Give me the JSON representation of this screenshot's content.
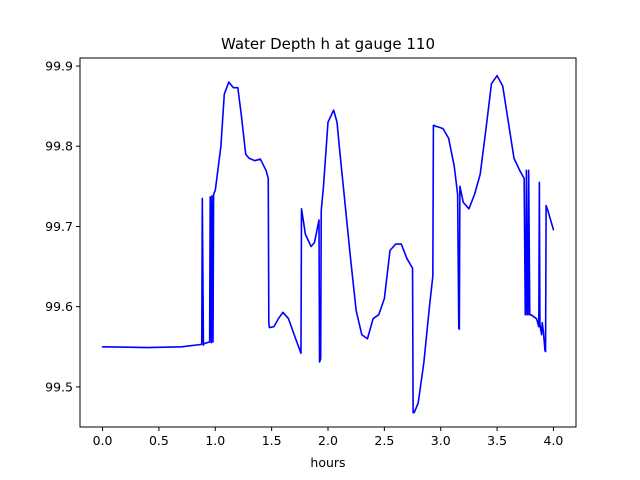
{
  "chart_data": {
    "type": "line",
    "title": "Water Depth h at gauge 110",
    "xlabel": "hours",
    "ylabel": "",
    "xlim": [
      -0.2,
      4.2
    ],
    "ylim": [
      99.45,
      99.91
    ],
    "x_ticks": [
      0.0,
      0.5,
      1.0,
      1.5,
      2.0,
      2.5,
      3.0,
      3.5,
      4.0
    ],
    "x_tick_labels": [
      "0.0",
      "0.5",
      "1.0",
      "1.5",
      "2.0",
      "2.5",
      "3.0",
      "3.5",
      "4.0"
    ],
    "y_ticks": [
      99.5,
      99.6,
      99.7,
      99.8,
      99.9
    ],
    "y_tick_labels": [
      "99.5",
      "99.6",
      "99.7",
      "99.8",
      "99.9"
    ],
    "grid": false,
    "legend": "none",
    "series": [
      {
        "color": "#0000ff",
        "x": [
          0.0,
          0.4,
          0.7,
          0.88,
          0.885,
          0.895,
          0.9,
          0.95,
          0.955,
          0.965,
          0.97,
          0.98,
          0.985,
          1.0,
          1.05,
          1.08,
          1.12,
          1.16,
          1.2,
          1.23,
          1.27,
          1.3,
          1.35,
          1.4,
          1.45,
          1.47,
          1.475,
          1.48,
          1.52,
          1.56,
          1.6,
          1.65,
          1.7,
          1.76,
          1.765,
          1.8,
          1.85,
          1.88,
          1.92,
          1.925,
          1.935,
          1.94,
          1.96,
          2.0,
          2.05,
          2.08,
          2.1,
          2.15,
          2.2,
          2.25,
          2.3,
          2.35,
          2.4,
          2.45,
          2.5,
          2.55,
          2.6,
          2.65,
          2.7,
          2.75,
          2.755,
          2.765,
          2.8,
          2.85,
          2.9,
          2.93,
          2.935,
          2.945,
          2.95,
          2.98,
          3.02,
          3.07,
          3.12,
          3.15,
          3.16,
          3.165,
          3.17,
          3.2,
          3.25,
          3.3,
          3.35,
          3.4,
          3.45,
          3.5,
          3.55,
          3.6,
          3.65,
          3.7,
          3.74,
          3.75,
          3.755,
          3.76,
          3.77,
          3.775,
          3.78,
          3.79,
          3.8,
          3.85,
          3.87,
          3.875,
          3.88,
          3.895,
          3.9,
          3.91,
          3.925,
          3.93,
          3.935,
          3.95,
          4.0
        ],
        "y": [
          99.55,
          99.549,
          99.55,
          99.553,
          99.735,
          99.552,
          99.554,
          99.556,
          99.737,
          99.555,
          99.738,
          99.556,
          99.74,
          99.745,
          99.8,
          99.865,
          99.88,
          99.873,
          99.873,
          99.84,
          99.79,
          99.785,
          99.782,
          99.784,
          99.77,
          99.76,
          99.58,
          99.574,
          99.575,
          99.585,
          99.593,
          99.585,
          99.565,
          99.542,
          99.722,
          99.69,
          99.675,
          99.68,
          99.708,
          99.531,
          99.535,
          99.72,
          99.75,
          99.83,
          99.845,
          99.83,
          99.8,
          99.73,
          99.66,
          99.595,
          99.565,
          99.56,
          99.585,
          99.59,
          99.61,
          99.67,
          99.678,
          99.678,
          99.66,
          99.648,
          99.468,
          99.468,
          99.48,
          99.53,
          99.6,
          99.638,
          99.826,
          99.826,
          99.825,
          99.824,
          99.822,
          99.81,
          99.775,
          99.74,
          99.573,
          99.572,
          99.75,
          99.73,
          99.722,
          99.74,
          99.765,
          99.82,
          99.878,
          99.888,
          99.875,
          99.83,
          99.785,
          99.77,
          99.76,
          99.59,
          99.59,
          99.77,
          99.59,
          99.59,
          99.77,
          99.59,
          99.59,
          99.585,
          99.575,
          99.755,
          99.578,
          99.565,
          99.58,
          99.57,
          99.545,
          99.544,
          99.726,
          99.72,
          99.696
        ]
      }
    ]
  }
}
